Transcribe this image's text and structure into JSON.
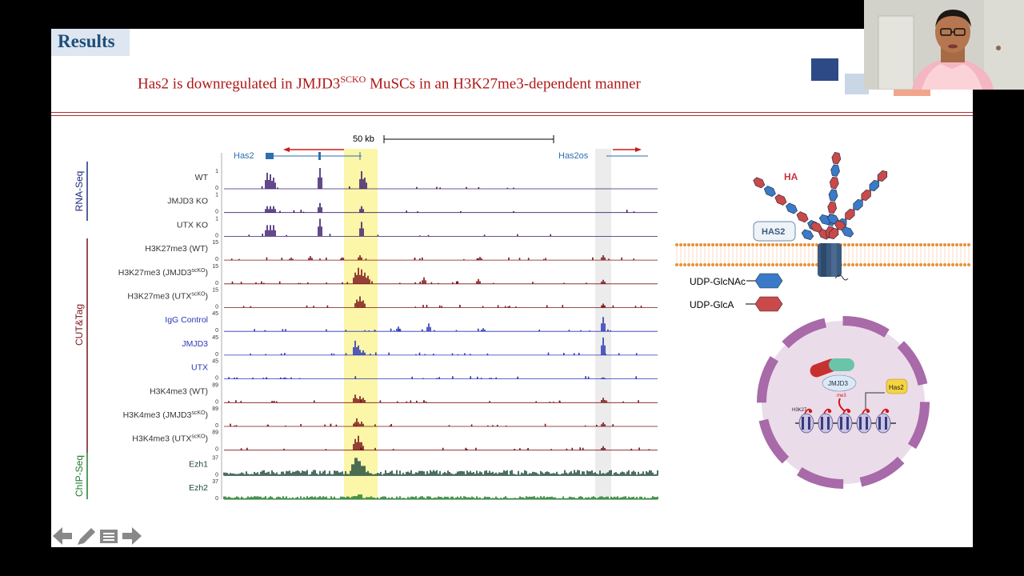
{
  "slide": {
    "section_title": "Results",
    "headline": {
      "before": "Has2 is downregulated in JMJD3",
      "sup": "SCKO",
      "after": " MuSCs in an H3K27me3-dependent manner"
    }
  },
  "browser": {
    "scale_label": "50 kb",
    "genes": {
      "left": "Has2",
      "right": "Has2os"
    },
    "groups": [
      "RNA-Seq",
      "CUT&Tag",
      "ChIP-Seq"
    ],
    "tracks": [
      {
        "label": "WT",
        "max": "1",
        "min": "0",
        "color": "#3b1c6e"
      },
      {
        "label": "JMJD3 KO",
        "max": "1",
        "min": "0",
        "color": "#3b1c6e"
      },
      {
        "label": "UTX KO",
        "max": "1",
        "min": "0",
        "color": "#3b1c6e"
      },
      {
        "label": "H3K27me3 (WT)",
        "max": "15",
        "min": "0",
        "color": "#7a1418"
      },
      {
        "label": "H3K27me3 (JMJD3",
        "sup": "scKO",
        "label_end": ")",
        "max": "15",
        "min": "0",
        "color": "#7a1418"
      },
      {
        "label": "H3K27me3 (UTX",
        "sup": "scKO",
        "label_end": ")",
        "max": "15",
        "min": "0",
        "color": "#7a1418"
      },
      {
        "label": "IgG Control",
        "max": "45",
        "min": "0",
        "color": "#2b35b8"
      },
      {
        "label": "JMJD3",
        "max": "45",
        "min": "0",
        "color": "#2b35b8"
      },
      {
        "label": "UTX",
        "max": "45",
        "min": "0",
        "color": "#2b35b8"
      },
      {
        "label": "H3K4me3 (WT)",
        "max": "89",
        "min": "0",
        "color": "#7a1418"
      },
      {
        "label": "H3K4me3 (JMJD3",
        "sup": "scKO",
        "label_end": ")",
        "max": "89",
        "min": "0",
        "color": "#7a1418"
      },
      {
        "label": "H3K4me3 (UTX",
        "sup": "scKO",
        "label_end": ")",
        "max": "89",
        "min": "0",
        "color": "#7a1418"
      },
      {
        "label": "Ezh1",
        "max": "37",
        "min": "0",
        "color": "#1f4a3a"
      },
      {
        "label": "Ezh2",
        "max": "37",
        "min": "0",
        "color": "#1f7a2a"
      }
    ]
  },
  "diagram": {
    "ha_label": "HA",
    "has2_label": "HAS2",
    "legend": [
      "UDP-GlcNAc",
      "UDP-GlcA"
    ],
    "nucleus": {
      "jmjd3": "JMJD3",
      "has2": "Has2",
      "h3k27": "H3K27",
      "me3": "me3"
    }
  },
  "colors": {
    "headline": "#b01818",
    "title": "#1f4e79",
    "highlight_yellow": "#fbf6a8",
    "highlight_gray": "#e8e8e8",
    "hex_blue": "#3a7ac8",
    "hex_red": "#c84a4a"
  },
  "nav_icons": [
    "arrow-left-icon",
    "pen-icon",
    "menu-icon",
    "arrow-right-icon"
  ]
}
